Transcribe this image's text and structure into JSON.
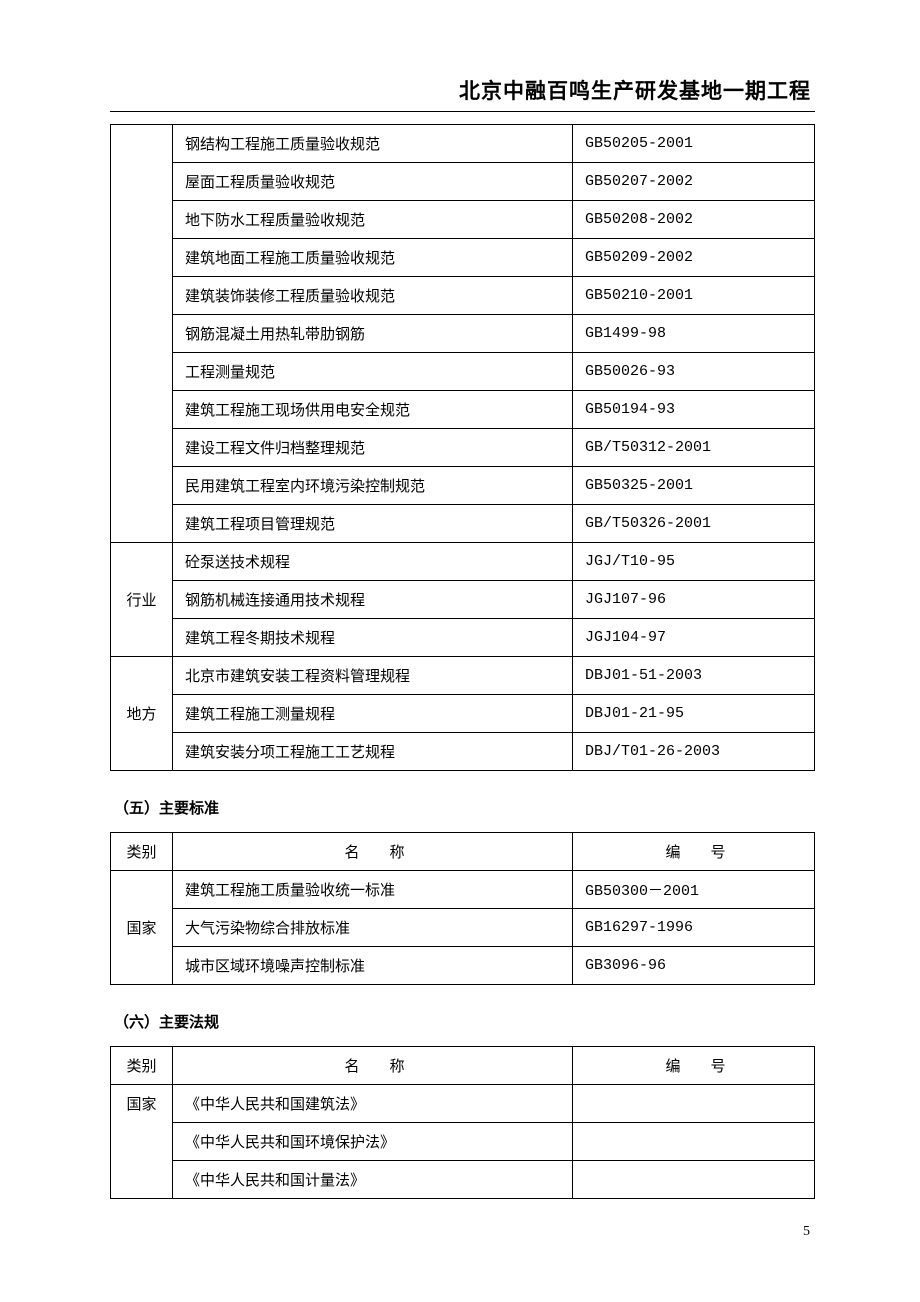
{
  "header": {
    "title": "北京中融百鸣生产研发基地一期工程"
  },
  "table1": {
    "groups": [
      {
        "category": "",
        "rows": [
          {
            "name": "钢结构工程施工质量验收规范",
            "code": "GB50205-2001"
          },
          {
            "name": "屋面工程质量验收规范",
            "code": "GB50207-2002"
          },
          {
            "name": "地下防水工程质量验收规范",
            "code": "GB50208-2002"
          },
          {
            "name": "建筑地面工程施工质量验收规范",
            "code": "GB50209-2002"
          },
          {
            "name": "建筑装饰装修工程质量验收规范",
            "code": "GB50210-2001"
          },
          {
            "name": "钢筋混凝土用热轧带肋钢筋",
            "code": "GB1499-98"
          },
          {
            "name": "工程测量规范",
            "code": "GB50026-93"
          },
          {
            "name": "建筑工程施工现场供用电安全规范",
            "code": "GB50194-93"
          },
          {
            "name": "建设工程文件归档整理规范",
            "code": "GB/T50312-2001"
          },
          {
            "name": "民用建筑工程室内环境污染控制规范",
            "code": "GB50325-2001"
          },
          {
            "name": "建筑工程项目管理规范",
            "code": "GB/T50326-2001"
          }
        ]
      },
      {
        "category": "行业",
        "rows": [
          {
            "name": "砼泵送技术规程",
            "code": "JGJ/T10-95"
          },
          {
            "name": "钢筋机械连接通用技术规程",
            "code": "JGJ107-96"
          },
          {
            "name": "建筑工程冬期技术规程",
            "code": "JGJ104-97"
          }
        ]
      },
      {
        "category": "地方",
        "rows": [
          {
            "name": "北京市建筑安装工程资料管理规程",
            "code": "DBJ01-51-2003"
          },
          {
            "name": "建筑工程施工测量规程",
            "code": "DBJ01-21-95"
          },
          {
            "name": "建筑安装分项工程施工工艺规程",
            "code": "DBJ/T01-26-2003"
          }
        ]
      }
    ]
  },
  "section5": {
    "heading": "（五）主要标准",
    "header": {
      "cat": "类别",
      "name": "名　　称",
      "code": "编　　号"
    },
    "groups": [
      {
        "category": "国家",
        "rows": [
          {
            "name": "建筑工程施工质量验收统一标准",
            "code": "GB50300－2001"
          },
          {
            "name": "大气污染物综合排放标准",
            "code": "GB16297-1996"
          },
          {
            "name": "城市区域环境噪声控制标准",
            "code": "GB3096-96"
          }
        ]
      }
    ]
  },
  "section6": {
    "heading": "（六）主要法规",
    "header": {
      "cat": "类别",
      "name": "名　　称",
      "code": "编　　号"
    },
    "groups": [
      {
        "category": "国家",
        "rows": [
          {
            "name": "《中华人民共和国建筑法》",
            "code": ""
          },
          {
            "name": "《中华人民共和国环境保护法》",
            "code": ""
          },
          {
            "name": "《中华人民共和国计量法》",
            "code": ""
          }
        ]
      }
    ]
  },
  "page_number": "5"
}
